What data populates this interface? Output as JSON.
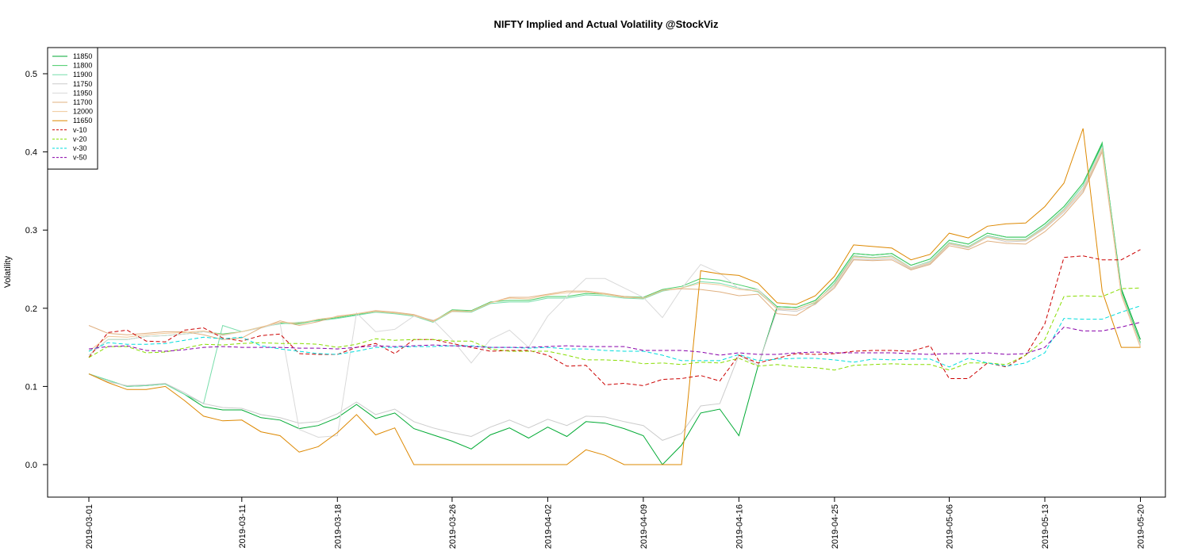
{
  "chart_data": {
    "type": "line",
    "title": "NIFTY Implied and Actual Volatility @StockViz",
    "xlabel": "",
    "ylabel": "Volatility",
    "x_tick_labels": [
      "2019-03-01",
      "2019-03-11",
      "2019-03-18",
      "2019-03-26",
      "2019-04-02",
      "2019-04-09",
      "2019-04-16",
      "2019-04-25",
      "2019-05-06",
      "2019-05-13",
      "2019-05-20"
    ],
    "x_tick_index": [
      0,
      8,
      13,
      19,
      24,
      29,
      34,
      39,
      45,
      50,
      55
    ],
    "y_ticks": [
      0.0,
      0.1,
      0.2,
      0.3,
      0.4,
      0.5
    ],
    "y_tick_labels": [
      "0.0",
      "0.1",
      "0.2",
      "0.3",
      "0.4",
      "0.5"
    ],
    "ylim": [
      -0.04,
      0.535
    ],
    "n_points": 56,
    "grid": false,
    "legend_position": "top-left",
    "series": [
      {
        "name": "11850",
        "color": "#00aa33",
        "dash": "",
        "values": [
          0.116,
          0.108,
          0.1,
          0.101,
          0.103,
          0.09,
          0.074,
          0.07,
          0.07,
          0.06,
          0.057,
          0.046,
          0.05,
          0.06,
          0.077,
          0.059,
          0.066,
          0.046,
          0.038,
          0.03,
          0.02,
          0.038,
          0.047,
          0.034,
          0.048,
          0.036,
          0.055,
          0.053,
          0.046,
          0.037,
          0.0,
          0.025,
          0.066,
          0.071,
          0.037,
          0.126,
          0.202,
          0.201,
          0.21,
          0.235,
          0.27,
          0.268,
          0.27,
          0.255,
          0.263,
          0.287,
          0.282,
          0.296,
          0.291,
          0.291,
          0.308,
          0.33,
          0.36,
          0.41,
          0.225,
          0.16
        ]
      },
      {
        "name": "11800",
        "color": "#44cc66",
        "dash": "",
        "values": [
          0.14,
          0.16,
          0.16,
          0.164,
          0.165,
          0.167,
          0.17,
          0.167,
          0.17,
          0.175,
          0.181,
          0.18,
          0.185,
          0.188,
          0.192,
          0.196,
          0.194,
          0.191,
          0.183,
          0.198,
          0.197,
          0.208,
          0.21,
          0.21,
          0.215,
          0.215,
          0.219,
          0.218,
          0.215,
          0.214,
          0.224,
          0.228,
          0.238,
          0.236,
          0.23,
          0.224,
          0.202,
          0.201,
          0.21,
          0.235,
          0.27,
          0.268,
          0.27,
          0.255,
          0.263,
          0.287,
          0.282,
          0.296,
          0.291,
          0.291,
          0.308,
          0.33,
          0.36,
          0.412,
          0.222,
          0.156
        ]
      },
      {
        "name": "11900",
        "color": "#77ddaa",
        "dash": "",
        "values": [
          0.116,
          0.108,
          0.1,
          0.101,
          0.103,
          0.09,
          0.078,
          0.178,
          0.17,
          0.176,
          0.18,
          0.182,
          0.184,
          0.187,
          0.191,
          0.195,
          0.193,
          0.19,
          0.182,
          0.196,
          0.195,
          0.206,
          0.208,
          0.208,
          0.213,
          0.213,
          0.217,
          0.216,
          0.213,
          0.212,
          0.222,
          0.226,
          0.234,
          0.232,
          0.226,
          0.221,
          0.2,
          0.199,
          0.207,
          0.232,
          0.267,
          0.265,
          0.267,
          0.252,
          0.26,
          0.284,
          0.279,
          0.293,
          0.288,
          0.288,
          0.305,
          0.327,
          0.357,
          0.408,
          0.22,
          0.154
        ]
      },
      {
        "name": "11750",
        "color": "#cccccc",
        "dash": "",
        "values": [
          0.116,
          0.106,
          0.101,
          0.102,
          0.104,
          0.092,
          0.078,
          0.073,
          0.072,
          0.064,
          0.06,
          0.053,
          0.055,
          0.065,
          0.08,
          0.064,
          0.071,
          0.055,
          0.047,
          0.041,
          0.036,
          0.048,
          0.057,
          0.047,
          0.058,
          0.05,
          0.062,
          0.061,
          0.055,
          0.05,
          0.031,
          0.04,
          0.075,
          0.078,
          0.14,
          0.127,
          0.198,
          0.196,
          0.205,
          0.228,
          0.263,
          0.262,
          0.264,
          0.25,
          0.257,
          0.282,
          0.277,
          0.291,
          0.285,
          0.286,
          0.302,
          0.323,
          0.35,
          0.402,
          0.218,
          0.152
        ]
      },
      {
        "name": "11950",
        "color": "#d9d9d9",
        "dash": "",
        "values": [
          0.14,
          0.16,
          0.16,
          0.164,
          0.165,
          0.167,
          0.17,
          0.165,
          0.17,
          0.175,
          0.181,
          0.045,
          0.035,
          0.037,
          0.194,
          0.17,
          0.173,
          0.19,
          0.185,
          0.16,
          0.13,
          0.16,
          0.172,
          0.15,
          0.19,
          0.215,
          0.238,
          0.238,
          0.226,
          0.214,
          0.188,
          0.225,
          0.256,
          0.245,
          0.225,
          0.224,
          0.2,
          0.199,
          0.208,
          0.23,
          0.265,
          0.264,
          0.266,
          0.252,
          0.259,
          0.283,
          0.278,
          0.292,
          0.287,
          0.287,
          0.304,
          0.326,
          0.354,
          0.405,
          0.219,
          0.153
        ]
      },
      {
        "name": "11700",
        "color": "#e0b080",
        "dash": "",
        "values": [
          0.178,
          0.168,
          0.166,
          0.168,
          0.17,
          0.17,
          0.166,
          0.16,
          0.162,
          0.175,
          0.184,
          0.178,
          0.183,
          0.19,
          0.193,
          0.197,
          0.195,
          0.192,
          0.184,
          0.196,
          0.196,
          0.207,
          0.214,
          0.214,
          0.218,
          0.222,
          0.222,
          0.219,
          0.215,
          0.213,
          0.223,
          0.225,
          0.224,
          0.221,
          0.216,
          0.218,
          0.193,
          0.191,
          0.206,
          0.226,
          0.262,
          0.261,
          0.262,
          0.249,
          0.256,
          0.28,
          0.275,
          0.286,
          0.283,
          0.282,
          0.298,
          0.32,
          0.348,
          0.4,
          0.217,
          0.15
        ]
      },
      {
        "name": "12000",
        "color": "#f0c898",
        "dash": "",
        "values": [
          0.145,
          0.164,
          0.163,
          0.166,
          0.168,
          0.169,
          0.171,
          0.166,
          0.17,
          0.176,
          0.182,
          0.181,
          0.186,
          0.189,
          0.193,
          0.196,
          0.194,
          0.191,
          0.183,
          0.197,
          0.196,
          0.207,
          0.213,
          0.212,
          0.217,
          0.22,
          0.221,
          0.218,
          0.214,
          0.213,
          0.223,
          0.226,
          0.232,
          0.23,
          0.224,
          0.222,
          0.199,
          0.198,
          0.208,
          0.23,
          0.266,
          0.264,
          0.266,
          0.251,
          0.258,
          0.283,
          0.278,
          0.291,
          0.287,
          0.287,
          0.303,
          0.325,
          0.352,
          0.404,
          0.218,
          0.15
        ]
      },
      {
        "name": "11650",
        "color": "#dd8800",
        "dash": "",
        "values": [
          0.116,
          0.105,
          0.096,
          0.096,
          0.1,
          0.082,
          0.062,
          0.056,
          0.057,
          0.042,
          0.037,
          0.016,
          0.023,
          0.041,
          0.064,
          0.038,
          0.047,
          0.0,
          0.0,
          0.0,
          0.0,
          0.0,
          0.0,
          0.0,
          0.0,
          0.0,
          0.019,
          0.012,
          0.0,
          0.0,
          0.0,
          0.0,
          0.248,
          0.244,
          0.242,
          0.232,
          0.207,
          0.205,
          0.216,
          0.241,
          0.281,
          0.279,
          0.277,
          0.262,
          0.269,
          0.296,
          0.29,
          0.305,
          0.308,
          0.309,
          0.33,
          0.36,
          0.43,
          0.222,
          0.15,
          0.15
        ]
      },
      {
        "name": "v-10",
        "color": "#cc0000",
        "dash": "5,3",
        "values": [
          0.137,
          0.169,
          0.172,
          0.158,
          0.157,
          0.172,
          0.175,
          0.162,
          0.158,
          0.165,
          0.167,
          0.142,
          0.141,
          0.141,
          0.15,
          0.155,
          0.142,
          0.16,
          0.16,
          0.155,
          0.15,
          0.145,
          0.146,
          0.146,
          0.14,
          0.126,
          0.127,
          0.102,
          0.104,
          0.101,
          0.109,
          0.11,
          0.114,
          0.107,
          0.14,
          0.13,
          0.136,
          0.142,
          0.141,
          0.142,
          0.145,
          0.146,
          0.146,
          0.145,
          0.152,
          0.11,
          0.11,
          0.13,
          0.125,
          0.14,
          0.18,
          0.265,
          0.267,
          0.262,
          0.262,
          0.275
        ]
      },
      {
        "name": "v-20",
        "color": "#88dd00",
        "dash": "5,3",
        "values": [
          0.137,
          0.151,
          0.151,
          0.143,
          0.144,
          0.149,
          0.154,
          0.153,
          0.155,
          0.156,
          0.155,
          0.155,
          0.154,
          0.15,
          0.154,
          0.161,
          0.159,
          0.16,
          0.16,
          0.158,
          0.158,
          0.148,
          0.145,
          0.145,
          0.145,
          0.14,
          0.134,
          0.134,
          0.133,
          0.129,
          0.13,
          0.128,
          0.131,
          0.13,
          0.136,
          0.126,
          0.128,
          0.125,
          0.124,
          0.121,
          0.127,
          0.128,
          0.129,
          0.128,
          0.128,
          0.121,
          0.13,
          0.13,
          0.128,
          0.14,
          0.16,
          0.215,
          0.216,
          0.215,
          0.225,
          0.226
        ]
      },
      {
        "name": "v-30",
        "color": "#00dddd",
        "dash": "5,3",
        "values": [
          0.145,
          0.156,
          0.154,
          0.154,
          0.155,
          0.159,
          0.163,
          0.161,
          0.163,
          0.152,
          0.148,
          0.145,
          0.142,
          0.141,
          0.145,
          0.15,
          0.15,
          0.151,
          0.151,
          0.152,
          0.152,
          0.15,
          0.15,
          0.149,
          0.15,
          0.148,
          0.148,
          0.146,
          0.145,
          0.145,
          0.14,
          0.133,
          0.133,
          0.133,
          0.141,
          0.133,
          0.135,
          0.136,
          0.136,
          0.134,
          0.131,
          0.135,
          0.134,
          0.135,
          0.135,
          0.125,
          0.136,
          0.13,
          0.126,
          0.13,
          0.143,
          0.187,
          0.186,
          0.186,
          0.195,
          0.203
        ]
      },
      {
        "name": "v-50",
        "color": "#8800aa",
        "dash": "5,3",
        "values": [
          0.148,
          0.151,
          0.152,
          0.146,
          0.145,
          0.147,
          0.15,
          0.151,
          0.15,
          0.15,
          0.15,
          0.149,
          0.149,
          0.148,
          0.15,
          0.152,
          0.151,
          0.152,
          0.153,
          0.152,
          0.151,
          0.15,
          0.15,
          0.15,
          0.151,
          0.152,
          0.151,
          0.151,
          0.151,
          0.146,
          0.146,
          0.146,
          0.144,
          0.14,
          0.143,
          0.141,
          0.141,
          0.143,
          0.144,
          0.143,
          0.143,
          0.143,
          0.143,
          0.142,
          0.141,
          0.142,
          0.142,
          0.143,
          0.141,
          0.142,
          0.15,
          0.176,
          0.171,
          0.171,
          0.176,
          0.182
        ]
      }
    ]
  }
}
